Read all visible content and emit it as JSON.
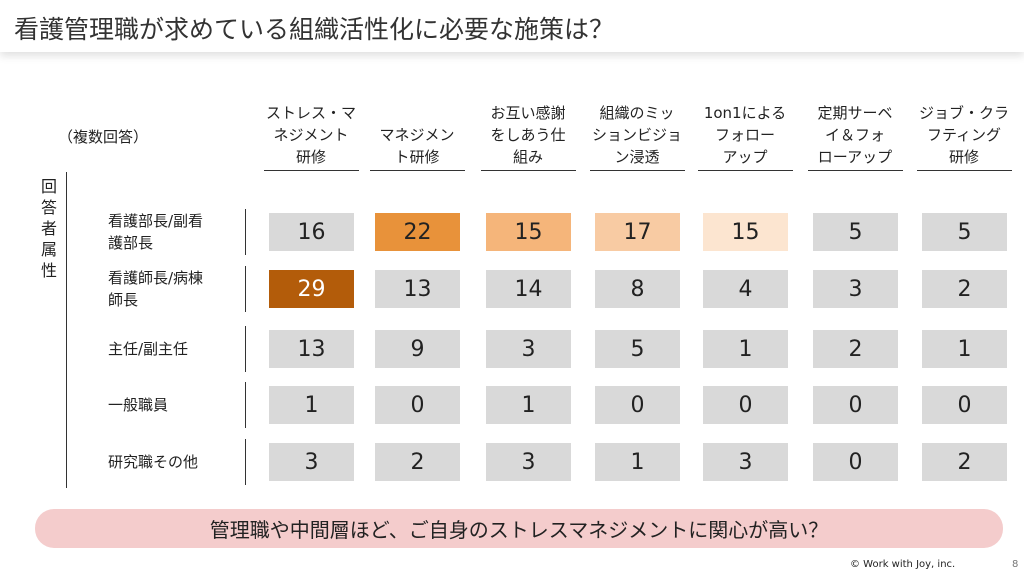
{
  "title": "看護管理職が求めている組織活性化に必要な施策は？",
  "chart_data": {
    "type": "heatmap",
    "note": "（複数回答）",
    "row_axis_label": "回答者属性",
    "columns": [
      "ストレス・マネジメント研修",
      "マネジメント研修",
      "お互い感謝をしあう仕組み",
      "組織のミッションビジョン浸透",
      "1on1によるフォローアップ",
      "定期サーベイ＆フォローアップ",
      "ジョブ・クラフティング研修"
    ],
    "column_labels_display": [
      [
        "ストレス・マ",
        "ネジメント",
        "研修"
      ],
      [
        "マネジメン",
        "ト研修"
      ],
      [
        "お互い感謝",
        "をしあう仕",
        "組み"
      ],
      [
        "組織のミッ",
        "ションビジョ",
        "ン浸透"
      ],
      [
        "1on1による",
        "フォロー",
        "アップ"
      ],
      [
        "定期サーベ",
        "イ＆フォ",
        "ローアップ"
      ],
      [
        "ジョブ・クラ",
        "フティング",
        "研修"
      ]
    ],
    "rows": [
      "看護部長/副看護部長",
      "看護師長/病棟師長",
      "主任/副主任",
      "一般職員",
      "研究職その他"
    ],
    "row_labels_display": [
      [
        "看護部長/副看",
        "護部長"
      ],
      [
        "看護師長/病棟",
        "師長"
      ],
      [
        "主任/副主任"
      ],
      [
        "一般職員"
      ],
      [
        "研究職その他"
      ]
    ],
    "values": [
      [
        16,
        22,
        15,
        17,
        15,
        5,
        5
      ],
      [
        29,
        13,
        14,
        8,
        4,
        3,
        2
      ],
      [
        13,
        9,
        3,
        5,
        1,
        2,
        1
      ],
      [
        1,
        0,
        1,
        0,
        0,
        0,
        0
      ],
      [
        3,
        2,
        3,
        1,
        3,
        0,
        2
      ]
    ],
    "highlight_colors": {
      "0-1": "#e8923a",
      "0-2": "#f5b57a",
      "0-3": "#f8cba3",
      "0-4": "#fce5d0",
      "1-0": "#b35c0a"
    },
    "default_color": "#d9d9d9",
    "highlight_text_colors": {
      "1-0": "#ffffff"
    }
  },
  "callout": "管理職や中間層ほど、ご自身のストレスマネジメントに関心が高い？",
  "copyright": "© Work with Joy, inc.",
  "page_number": "8"
}
